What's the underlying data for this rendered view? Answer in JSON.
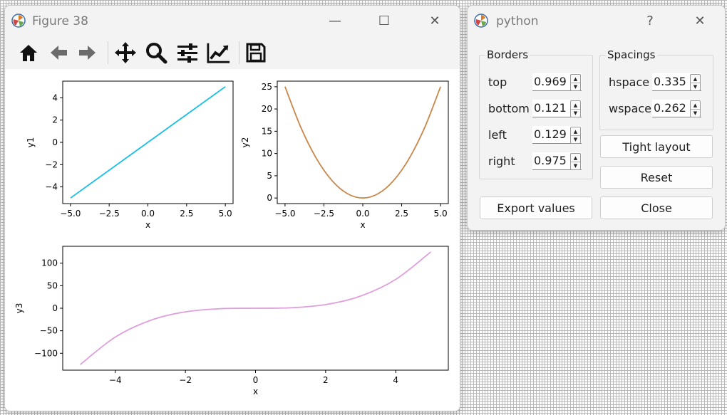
{
  "figure_window": {
    "title": "Figure 38",
    "controls": {
      "minimize": "—",
      "maximize": "☐",
      "close": "✕"
    },
    "toolbar": [
      "home-icon",
      "back-arrow-icon",
      "forward-arrow-icon",
      "pan-move-icon",
      "zoom-magnifier-icon",
      "configure-subplots-icon",
      "edit-axis-line-icon",
      "save-floppy-icon"
    ]
  },
  "chart_data": [
    {
      "type": "line",
      "xlabel": "x",
      "ylabel": "y1",
      "xlim": [
        -5.5,
        5.5
      ],
      "ylim": [
        -5.5,
        5.5
      ],
      "xticks": [
        -5.0,
        -2.5,
        0.0,
        2.5,
        5.0
      ],
      "xtick_labels": [
        "−5.0",
        "−2.5",
        "0.0",
        "2.5",
        "5.0"
      ],
      "yticks": [
        -4,
        -2,
        0,
        2,
        4
      ],
      "ytick_labels": [
        "−4",
        "−2",
        "0",
        "2",
        "4"
      ],
      "series": [
        {
          "x": [
            -5,
            5
          ],
          "y": [
            -5,
            5
          ],
          "color": "#16bfe8"
        }
      ]
    },
    {
      "type": "line",
      "xlabel": "x",
      "ylabel": "y2",
      "xlim": [
        -5.5,
        5.5
      ],
      "ylim": [
        -1.25,
        26.25
      ],
      "xticks": [
        -5.0,
        -2.5,
        0.0,
        2.5,
        5.0
      ],
      "xtick_labels": [
        "−5.0",
        "−2.5",
        "0.0",
        "2.5",
        "5.0"
      ],
      "yticks": [
        0,
        5,
        10,
        15,
        20,
        25
      ],
      "ytick_labels": [
        "0",
        "5",
        "10",
        "15",
        "20",
        "25"
      ],
      "series": [
        {
          "x": [
            -5,
            -4,
            -3,
            -2,
            -1,
            0,
            1,
            2,
            3,
            4,
            5
          ],
          "y": [
            25,
            16,
            9,
            4,
            1,
            0,
            1,
            4,
            9,
            16,
            25
          ],
          "color": "#c8864a"
        }
      ]
    },
    {
      "type": "line",
      "xlabel": "x",
      "ylabel": "y3",
      "xlim": [
        -5.5,
        5.5
      ],
      "ylim": [
        -137.5,
        137.5
      ],
      "xticks": [
        -4,
        -2,
        0,
        2,
        4
      ],
      "xtick_labels": [
        "−4",
        "−2",
        "0",
        "2",
        "4"
      ],
      "yticks": [
        -100,
        -50,
        0,
        50,
        100
      ],
      "ytick_labels": [
        "−100",
        "−50",
        "0",
        "50",
        "100"
      ],
      "series": [
        {
          "x": [
            -5,
            -4,
            -3,
            -2,
            -1,
            0,
            1,
            2,
            3,
            4,
            5
          ],
          "y": [
            -125,
            -64,
            -27,
            -8,
            -1,
            0,
            1,
            8,
            27,
            64,
            125
          ],
          "color": "#de9fdc"
        }
      ]
    }
  ],
  "dialog": {
    "title": "python",
    "controls": {
      "help": "?",
      "close": "✕"
    },
    "borders": {
      "title": "Borders",
      "rows": [
        {
          "label": "top",
          "value": "0.969"
        },
        {
          "label": "bottom",
          "value": "0.121"
        },
        {
          "label": "left",
          "value": "0.129"
        },
        {
          "label": "right",
          "value": "0.975"
        }
      ]
    },
    "spacings": {
      "title": "Spacings",
      "rows": [
        {
          "label": "hspace",
          "value": "0.335"
        },
        {
          "label": "wspace",
          "value": "0.262"
        }
      ]
    },
    "buttons": {
      "tight_layout": "Tight layout",
      "reset": "Reset",
      "export_values": "Export values",
      "close": "Close"
    }
  }
}
